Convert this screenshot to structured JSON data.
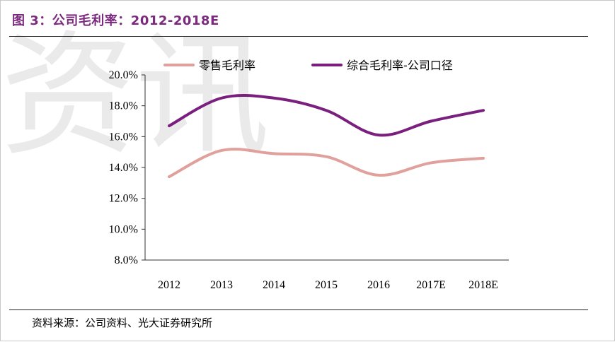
{
  "header": {
    "title": "图 3：公司毛利率：2012-2018E"
  },
  "watermark": {
    "text": "资讯"
  },
  "footer": {
    "source": "资料来源：公司资料、光大证券研究所"
  },
  "colors": {
    "series1": "#e0a09c",
    "series2": "#7b1f7f",
    "title": "#7b2a7e"
  },
  "chart_data": {
    "type": "line",
    "title": "",
    "xlabel": "",
    "ylabel": "",
    "categories": [
      "2012",
      "2013",
      "2014",
      "2015",
      "2016",
      "2017E",
      "2018E"
    ],
    "ylim": [
      8.0,
      20.0
    ],
    "yticks": [
      "8.0%",
      "10.0%",
      "12.0%",
      "14.0%",
      "16.0%",
      "18.0%",
      "20.0%"
    ],
    "legend_position": "top",
    "grid": false,
    "series": [
      {
        "name": "零售毛利率",
        "color": "#e0a09c",
        "values": [
          13.4,
          15.1,
          14.9,
          14.7,
          13.5,
          14.3,
          14.6
        ]
      },
      {
        "name": "综合毛利率-公司口径",
        "color": "#7b1f7f",
        "values": [
          16.7,
          18.5,
          18.5,
          17.7,
          16.1,
          17.0,
          17.7
        ]
      }
    ]
  }
}
